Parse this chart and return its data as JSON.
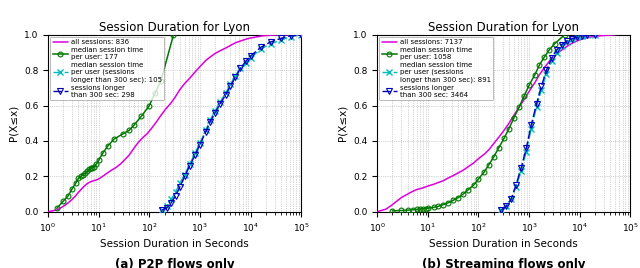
{
  "title": "Session Duration for Lyon",
  "xlabel": "Session Duration in Seconds",
  "ylabel": "P(X≤x)",
  "p2p": {
    "title": "Session Duration for Lyon",
    "subtitle": "(a) P2P flows only",
    "all_sessions_n": 836,
    "median_per_user_n": 177,
    "median_per_user_long_n": 105,
    "sessions_long_n": 298,
    "line1_color": "#dd00dd",
    "line2_color": "#007700",
    "line3_color": "#00bbbb",
    "line4_color": "#0000bb",
    "line1_x": [
      1.0,
      1.5,
      2.0,
      2.5,
      3.0,
      3.5,
      4.0,
      5.0,
      6.0,
      7.0,
      8.0,
      9.0,
      10.0,
      12.0,
      15.0,
      18.0,
      22.0,
      27.0,
      33.0,
      40.0,
      50.0,
      60.0,
      75.0,
      90.0,
      110.0,
      140.0,
      170.0,
      210.0,
      260.0,
      320.0,
      400.0,
      500.0,
      630.0,
      800.0,
      1000.0,
      1300.0,
      1600.0,
      2000.0,
      2500.0,
      3200.0,
      4000.0,
      5000.0,
      6300.0,
      8000.0,
      10000.0,
      13000.0,
      16000.0,
      20000.0,
      30000.0,
      50000.0,
      100000.0
    ],
    "line1_y": [
      0.0,
      0.01,
      0.03,
      0.05,
      0.07,
      0.09,
      0.11,
      0.14,
      0.16,
      0.17,
      0.175,
      0.18,
      0.185,
      0.2,
      0.22,
      0.235,
      0.25,
      0.27,
      0.295,
      0.32,
      0.36,
      0.39,
      0.42,
      0.44,
      0.47,
      0.51,
      0.545,
      0.58,
      0.61,
      0.645,
      0.69,
      0.725,
      0.755,
      0.79,
      0.82,
      0.855,
      0.875,
      0.895,
      0.91,
      0.925,
      0.94,
      0.955,
      0.965,
      0.975,
      0.982,
      0.988,
      0.993,
      0.996,
      0.999,
      1.0,
      1.0
    ],
    "line2_x": [
      1.5,
      2.0,
      2.5,
      3.0,
      3.5,
      4.0,
      4.5,
      5.0,
      5.5,
      6.0,
      6.5,
      7.0,
      7.5,
      8.0,
      9.0,
      10.0,
      12.0,
      15.0,
      20.0,
      30.0,
      40.0,
      50.0,
      70.0,
      100.0,
      130.0,
      170.0,
      300.0
    ],
    "line2_y": [
      0.02,
      0.06,
      0.09,
      0.13,
      0.16,
      0.19,
      0.2,
      0.21,
      0.22,
      0.23,
      0.24,
      0.245,
      0.25,
      0.255,
      0.27,
      0.29,
      0.33,
      0.37,
      0.41,
      0.44,
      0.46,
      0.49,
      0.54,
      0.6,
      0.67,
      0.74,
      1.0
    ],
    "line3_x": [
      180.0,
      220.0,
      270.0,
      330.0,
      400.0,
      500.0,
      630.0,
      800.0,
      1000.0,
      1300.0,
      1600.0,
      2000.0,
      2500.0,
      3200.0,
      4000.0,
      5000.0,
      6300.0,
      8000.0,
      10000.0,
      16000.0,
      25000.0,
      40000.0,
      63000.0,
      100000.0
    ],
    "line3_y": [
      0.01,
      0.03,
      0.07,
      0.11,
      0.16,
      0.21,
      0.27,
      0.33,
      0.39,
      0.46,
      0.52,
      0.57,
      0.62,
      0.67,
      0.72,
      0.77,
      0.81,
      0.84,
      0.87,
      0.92,
      0.95,
      0.97,
      0.99,
      1.0
    ],
    "line4_x": [
      180.0,
      220.0,
      270.0,
      330.0,
      400.0,
      500.0,
      630.0,
      800.0,
      1000.0,
      1300.0,
      1600.0,
      2000.0,
      2500.0,
      3200.0,
      4000.0,
      5000.0,
      6300.0,
      8000.0,
      10000.0,
      16000.0,
      25000.0,
      40000.0,
      63000.0,
      100000.0
    ],
    "line4_y": [
      0.01,
      0.02,
      0.05,
      0.09,
      0.14,
      0.2,
      0.26,
      0.32,
      0.38,
      0.45,
      0.51,
      0.56,
      0.61,
      0.66,
      0.71,
      0.76,
      0.81,
      0.85,
      0.88,
      0.93,
      0.96,
      0.98,
      0.995,
      1.0
    ]
  },
  "streaming": {
    "title": "Session Duration for Lyon",
    "subtitle": "(b) Streaming flows only",
    "all_sessions_n": 7137,
    "median_per_user_n": 1058,
    "median_per_user_long_n": 891,
    "sessions_long_n": 3464,
    "line1_color": "#dd00dd",
    "line2_color": "#007700",
    "line3_color": "#00bbbb",
    "line4_color": "#0000bb",
    "line1_x": [
      1.0,
      1.5,
      2.0,
      3.0,
      4.0,
      5.0,
      6.0,
      7.0,
      8.0,
      9.0,
      10.0,
      13.0,
      16.0,
      20.0,
      25.0,
      32.0,
      40.0,
      50.0,
      63.0,
      80.0,
      100.0,
      130.0,
      160.0,
      200.0,
      250.0,
      320.0,
      400.0,
      500.0,
      630.0,
      800.0,
      1000.0,
      1300.0,
      1600.0,
      2000.0,
      2500.0,
      3200.0,
      4000.0,
      5000.0,
      6300.0,
      8000.0,
      10000.0,
      13000.0,
      20000.0,
      50000.0
    ],
    "line1_y": [
      0.0,
      0.015,
      0.04,
      0.08,
      0.1,
      0.115,
      0.125,
      0.13,
      0.135,
      0.14,
      0.145,
      0.155,
      0.165,
      0.175,
      0.19,
      0.205,
      0.22,
      0.235,
      0.255,
      0.275,
      0.3,
      0.325,
      0.35,
      0.385,
      0.42,
      0.46,
      0.5,
      0.545,
      0.59,
      0.635,
      0.68,
      0.73,
      0.775,
      0.815,
      0.85,
      0.88,
      0.905,
      0.925,
      0.945,
      0.96,
      0.972,
      0.982,
      0.993,
      1.0
    ],
    "line2_x": [
      2.0,
      3.0,
      4.0,
      5.0,
      6.0,
      7.0,
      8.0,
      9.0,
      10.0,
      13.0,
      16.0,
      20.0,
      25.0,
      32.0,
      40.0,
      50.0,
      63.0,
      80.0,
      100.0,
      130.0,
      160.0,
      200.0,
      250.0,
      320.0,
      400.0,
      500.0,
      630.0,
      800.0,
      1000.0,
      1300.0,
      1600.0,
      2000.0,
      2500.0,
      3200.0,
      5000.0
    ],
    "line2_y": [
      0.005,
      0.007,
      0.009,
      0.011,
      0.013,
      0.015,
      0.017,
      0.018,
      0.02,
      0.025,
      0.03,
      0.04,
      0.05,
      0.065,
      0.08,
      0.1,
      0.125,
      0.15,
      0.185,
      0.225,
      0.265,
      0.31,
      0.36,
      0.415,
      0.47,
      0.53,
      0.59,
      0.655,
      0.715,
      0.775,
      0.83,
      0.875,
      0.915,
      0.95,
      1.0
    ],
    "line3_x": [
      280.0,
      350.0,
      440.0,
      550.0,
      700.0,
      880.0,
      1100.0,
      1400.0,
      1750.0,
      2200.0,
      2800.0,
      3500.0,
      4400.0,
      5500.0,
      7000.0,
      8800.0,
      11000.0,
      14000.0,
      20000.0
    ],
    "line3_y": [
      0.01,
      0.03,
      0.07,
      0.14,
      0.23,
      0.34,
      0.47,
      0.59,
      0.69,
      0.78,
      0.85,
      0.9,
      0.935,
      0.96,
      0.975,
      0.985,
      0.992,
      0.997,
      1.0
    ],
    "line4_x": [
      280.0,
      350.0,
      440.0,
      550.0,
      700.0,
      880.0,
      1100.0,
      1400.0,
      1750.0,
      2200.0,
      2800.0,
      3500.0,
      4400.0,
      5500.0,
      7000.0,
      8800.0,
      11000.0,
      14000.0,
      20000.0
    ],
    "line4_y": [
      0.01,
      0.03,
      0.07,
      0.15,
      0.25,
      0.36,
      0.49,
      0.61,
      0.71,
      0.8,
      0.87,
      0.915,
      0.945,
      0.965,
      0.978,
      0.987,
      0.993,
      0.997,
      1.0
    ]
  }
}
